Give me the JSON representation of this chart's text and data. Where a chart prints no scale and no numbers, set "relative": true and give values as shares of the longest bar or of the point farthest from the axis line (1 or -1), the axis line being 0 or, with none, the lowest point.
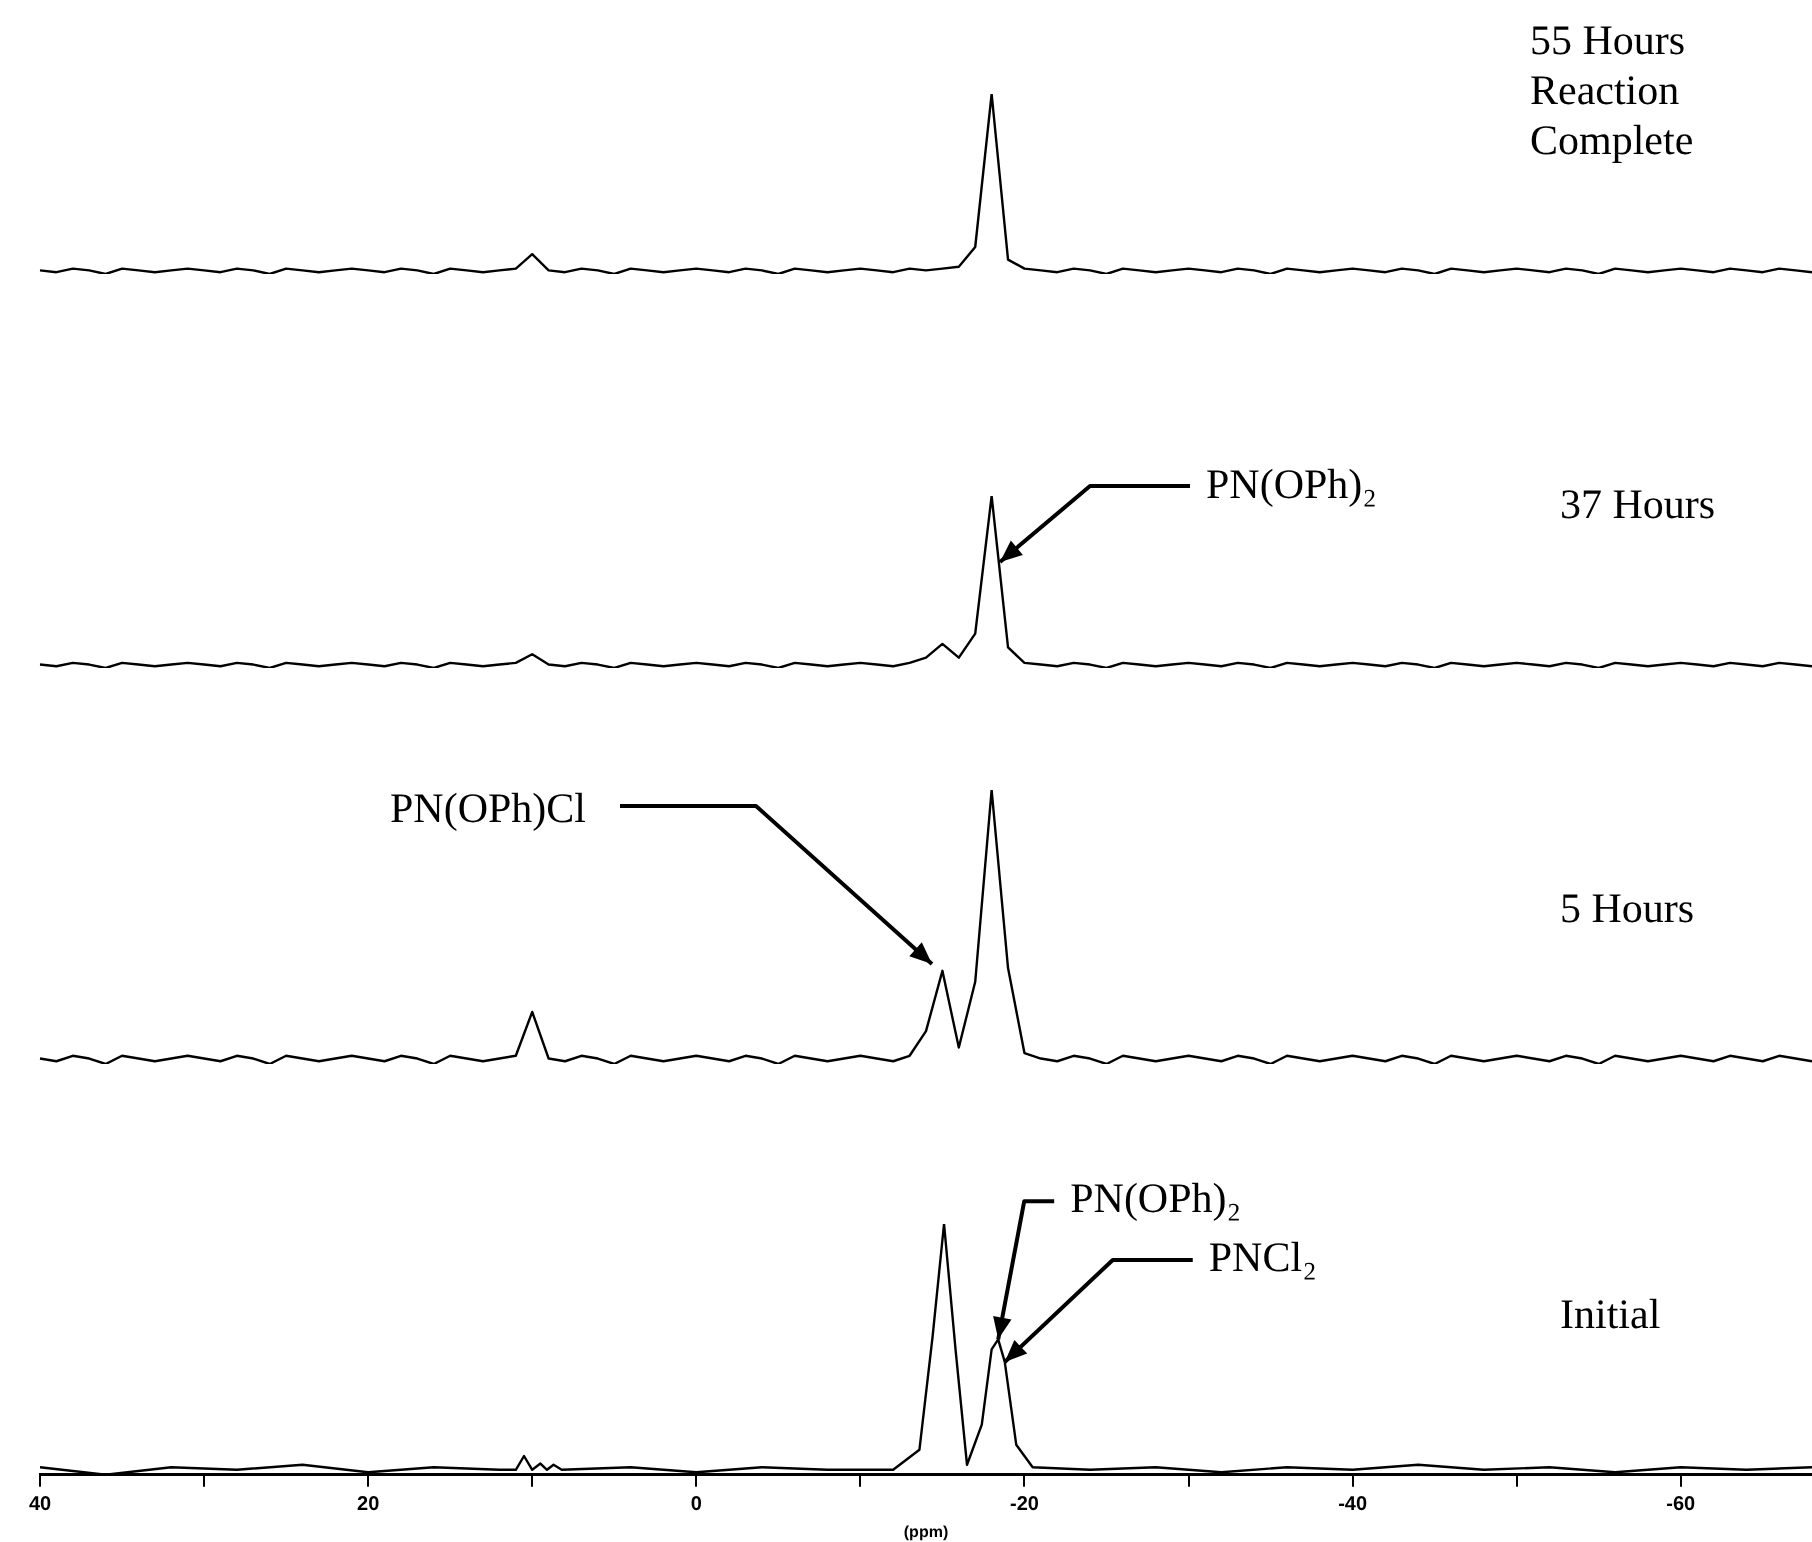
{
  "chart_data": [
    {
      "type": "line",
      "relative": true,
      "color": "#000000",
      "tick_labels": false,
      "annotations": [
        "55 Hours Reaction Complete"
      ],
      "categories": [
        null,
        null,
        null,
        null,
        null,
        null,
        null,
        null,
        null,
        null,
        null,
        null,
        null,
        null,
        null,
        null,
        null,
        null,
        null,
        null,
        null,
        null,
        null,
        null,
        null,
        null,
        null,
        null,
        null,
        null,
        null,
        null,
        null,
        null,
        null,
        null,
        null,
        null,
        null,
        null,
        null,
        null,
        null,
        null,
        null,
        null,
        null,
        null,
        null,
        null,
        null,
        null,
        null,
        null,
        null,
        null,
        null,
        null,
        null,
        null,
        null,
        null,
        null,
        null,
        null,
        null,
        null,
        null,
        null,
        null,
        null,
        null,
        null,
        null,
        null,
        null,
        null,
        null,
        null,
        null,
        null,
        null,
        null,
        null,
        null,
        null,
        null,
        null,
        null,
        null,
        null,
        null,
        null,
        null,
        null,
        null,
        null,
        null,
        null,
        null,
        null,
        null,
        null,
        null,
        null,
        null,
        null,
        null,
        null
      ],
      "values": [
        0.02,
        0.01,
        0.03,
        0.02,
        0,
        0.03,
        0.02,
        0.01,
        0.02,
        0.03,
        0.02,
        0.01,
        0.03,
        0.02,
        0,
        0.03,
        0.02,
        0.01,
        0.02,
        0.03,
        0.02,
        0.01,
        0.03,
        0.02,
        0,
        0.03,
        0.02,
        0.01,
        0.02,
        0.03,
        0.11,
        0.02,
        0.01,
        0.03,
        0.02,
        0,
        0.03,
        0.02,
        0.01,
        0.02,
        0.03,
        0.02,
        0.01,
        0.03,
        0.02,
        0,
        0.03,
        0.02,
        0.01,
        0.02,
        0.03,
        0.02,
        0.01,
        0.03,
        0.02,
        0.03,
        0.04,
        0.15,
        1,
        0.08,
        0.03,
        0.02,
        0.01,
        0.03,
        0.02,
        0,
        0.03,
        0.02,
        0.01,
        0.02,
        0.03,
        0.02,
        0.01,
        0.03,
        0.02,
        0,
        0.03,
        0.02,
        0.01,
        0.02,
        0.03,
        0.02,
        0.01,
        0.03,
        0.02,
        0,
        0.03,
        0.02,
        0.01,
        0.02,
        0.03,
        0.02,
        0.01,
        0.03,
        0.02,
        0,
        0.03,
        0.02,
        0.01,
        0.02,
        0.03,
        0.02,
        0.01,
        0.03,
        0.02,
        0.01,
        0.03,
        0.02,
        0.01
      ]
    },
    {
      "type": "line",
      "relative": true,
      "color": "#000000",
      "tick_labels": false,
      "annotations": [
        "PN(OPh)₂",
        "37 Hours"
      ],
      "categories": [
        null,
        null,
        null,
        null,
        null,
        null,
        null,
        null,
        null,
        null,
        null,
        null,
        null,
        null,
        null,
        null,
        null,
        null,
        null,
        null,
        null,
        null,
        null,
        null,
        null,
        null,
        null,
        null,
        null,
        null,
        null,
        null,
        null,
        null,
        null,
        null,
        null,
        null,
        null,
        null,
        null,
        null,
        null,
        null,
        null,
        null,
        null,
        null,
        null,
        null,
        null,
        null,
        null,
        null,
        null,
        null,
        null,
        null,
        null,
        null,
        null,
        null,
        null,
        null,
        null,
        null,
        null,
        null,
        null,
        null,
        null,
        null,
        null,
        null,
        null,
        null,
        null,
        null,
        null,
        null,
        null,
        null,
        null,
        null,
        null,
        null,
        null,
        null,
        null,
        null,
        null,
        null,
        null,
        null,
        null,
        null,
        null,
        null,
        null,
        null,
        null,
        null,
        null,
        null,
        null,
        null,
        null,
        null,
        null
      ],
      "values": [
        0.02,
        0.01,
        0.03,
        0.02,
        0,
        0.03,
        0.02,
        0.01,
        0.02,
        0.03,
        0.02,
        0.01,
        0.03,
        0.02,
        0,
        0.03,
        0.02,
        0.01,
        0.02,
        0.03,
        0.02,
        0.01,
        0.03,
        0.02,
        0,
        0.03,
        0.02,
        0.01,
        0.02,
        0.03,
        0.08,
        0.02,
        0.01,
        0.03,
        0.02,
        0,
        0.03,
        0.02,
        0.01,
        0.02,
        0.03,
        0.02,
        0.01,
        0.03,
        0.02,
        0,
        0.03,
        0.02,
        0.01,
        0.02,
        0.03,
        0.02,
        0.01,
        0.03,
        0.06,
        0.14,
        0.06,
        0.2,
        1,
        0.12,
        0.03,
        0.02,
        0.01,
        0.03,
        0.02,
        0,
        0.03,
        0.02,
        0.01,
        0.02,
        0.03,
        0.02,
        0.01,
        0.03,
        0.02,
        0,
        0.03,
        0.02,
        0.01,
        0.02,
        0.03,
        0.02,
        0.01,
        0.03,
        0.02,
        0,
        0.03,
        0.02,
        0.01,
        0.02,
        0.03,
        0.02,
        0.01,
        0.03,
        0.02,
        0,
        0.03,
        0.02,
        0.01,
        0.02,
        0.03,
        0.02,
        0.01,
        0.03,
        0.02,
        0.01,
        0.03,
        0.02,
        0.01
      ]
    },
    {
      "type": "line",
      "relative": true,
      "color": "#000000",
      "tick_labels": false,
      "annotations": [
        "PN(OPh)Cl",
        "5 Hours"
      ],
      "categories": [
        null,
        null,
        null,
        null,
        null,
        null,
        null,
        null,
        null,
        null,
        null,
        null,
        null,
        null,
        null,
        null,
        null,
        null,
        null,
        null,
        null,
        null,
        null,
        null,
        null,
        null,
        null,
        null,
        null,
        null,
        null,
        null,
        null,
        null,
        null,
        null,
        null,
        null,
        null,
        null,
        null,
        null,
        null,
        null,
        null,
        null,
        null,
        null,
        null,
        null,
        null,
        null,
        null,
        null,
        null,
        null,
        null,
        null,
        null,
        null,
        null,
        null,
        null,
        null,
        null,
        null,
        null,
        null,
        null,
        null,
        null,
        null,
        null,
        null,
        null,
        null,
        null,
        null,
        null,
        null,
        null,
        null,
        null,
        null,
        null,
        null,
        null,
        null,
        null,
        null,
        null,
        null,
        null,
        null,
        null,
        null,
        null,
        null,
        null,
        null,
        null,
        null,
        null,
        null,
        null,
        null,
        null,
        null,
        null
      ],
      "values": [
        0.02,
        0.01,
        0.03,
        0.02,
        0,
        0.03,
        0.02,
        0.01,
        0.02,
        0.03,
        0.02,
        0.01,
        0.03,
        0.02,
        0,
        0.03,
        0.02,
        0.01,
        0.02,
        0.03,
        0.02,
        0.01,
        0.03,
        0.02,
        0,
        0.03,
        0.02,
        0.01,
        0.02,
        0.03,
        0.19,
        0.02,
        0.01,
        0.03,
        0.02,
        0,
        0.03,
        0.02,
        0.01,
        0.02,
        0.03,
        0.02,
        0.01,
        0.03,
        0.02,
        0,
        0.03,
        0.02,
        0.01,
        0.02,
        0.03,
        0.02,
        0.01,
        0.03,
        0.12,
        0.34,
        0.06,
        0.3,
        1,
        0.35,
        0.04,
        0.02,
        0.01,
        0.03,
        0.02,
        0,
        0.03,
        0.02,
        0.01,
        0.02,
        0.03,
        0.02,
        0.01,
        0.03,
        0.02,
        0,
        0.03,
        0.02,
        0.01,
        0.02,
        0.03,
        0.02,
        0.01,
        0.03,
        0.02,
        0,
        0.03,
        0.02,
        0.01,
        0.02,
        0.03,
        0.02,
        0.01,
        0.03,
        0.02,
        0,
        0.03,
        0.02,
        0.01,
        0.02,
        0.03,
        0.02,
        0.01,
        0.03,
        0.02,
        0.01,
        0.03,
        0.02,
        0.01
      ]
    },
    {
      "type": "line",
      "relative": true,
      "color": "#000000",
      "xlim": [
        40,
        -68
      ],
      "tick_labels": "x",
      "xlabel": "(ppm)",
      "xticks": [
        40,
        {
          "value": 30,
          "label": null
        },
        20,
        {
          "value": 10,
          "label": null
        },
        0,
        {
          "value": -10,
          "label": null
        },
        -20,
        {
          "value": -30,
          "label": null
        },
        -40,
        {
          "value": -50,
          "label": null
        },
        -60
      ],
      "annotations": [
        {
          "text": "PN(OPh)₂",
          "x": -18.4,
          "y": 0.54
        },
        {
          "text": "PNCl₂",
          "x": -18.8,
          "y": 0.45
        },
        "Initial"
      ],
      "x": [
        40,
        36,
        32,
        28,
        24,
        20,
        16,
        12,
        11,
        10.5,
        10,
        9.5,
        9.1,
        8.7,
        8.2,
        4,
        0,
        -4,
        -8,
        -12,
        -13.6,
        -14.4,
        -15.1,
        -15.8,
        -16.5,
        -17.4,
        -18,
        -18.4,
        -18.8,
        -19.5,
        -20.5,
        -24,
        -28,
        -32,
        -36,
        -40,
        -44,
        -48,
        -52,
        -56,
        -60,
        -64,
        -68
      ],
      "values": [
        0.03,
        0,
        0.03,
        0.02,
        0.04,
        0.01,
        0.03,
        0.02,
        0.02,
        0.075,
        0.02,
        0.045,
        0.02,
        0.04,
        0.02,
        0.03,
        0.01,
        0.03,
        0.02,
        0.02,
        0.1,
        0.55,
        1,
        0.5,
        0.04,
        0.2,
        0.5,
        0.54,
        0.45,
        0.12,
        0.03,
        0.02,
        0.03,
        0.01,
        0.03,
        0.02,
        0.04,
        0.02,
        0.03,
        0.01,
        0.03,
        0.02,
        0.03
      ]
    }
  ]
}
